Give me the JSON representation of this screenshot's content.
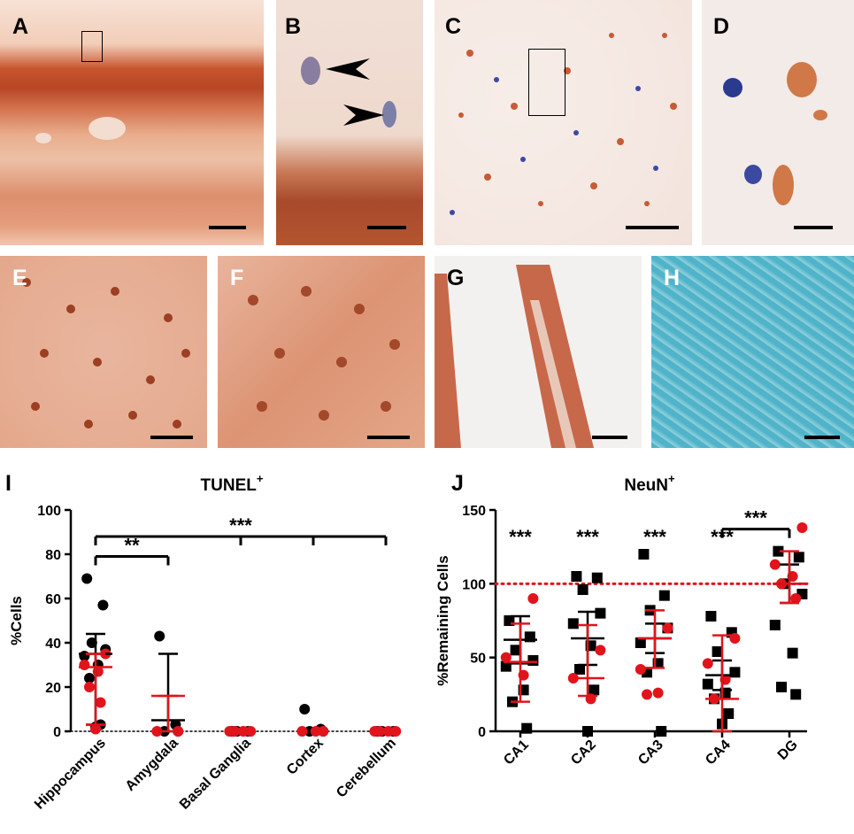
{
  "panels": {
    "A": {
      "label": "A"
    },
    "B": {
      "label": "B"
    },
    "C": {
      "label": "C"
    },
    "D": {
      "label": "D"
    },
    "E": {
      "label": "E"
    },
    "F": {
      "label": "F"
    },
    "G": {
      "label": "G"
    },
    "H": {
      "label": "H"
    }
  },
  "colors": {
    "stain_brown": "#b9542e",
    "stain_light": "#f1d6c7",
    "hematoxylin_blue": "#3a49a8",
    "alcian_blue": "#4fb3c9",
    "red_points": "#e2141b",
    "black_points": "#000000"
  },
  "chart_data": [
    {
      "panel_label": "I",
      "type": "scatter",
      "title": "TUNEL",
      "title_superscript": "+",
      "ylabel": "%Cells",
      "xlabel": "",
      "ylim": [
        0,
        100
      ],
      "yticks": [
        0,
        20,
        40,
        60,
        80,
        100
      ],
      "categories": [
        "Hippocampus",
        "Amygdala",
        "Basal Ganglia",
        "Cortex",
        "Cerebellum"
      ],
      "series": [
        {
          "color": "#000000",
          "points": [
            [
              0,
              69
            ],
            [
              0,
              57
            ],
            [
              0,
              40
            ],
            [
              0,
              37
            ],
            [
              0,
              34
            ],
            [
              0,
              30
            ],
            [
              0,
              24
            ],
            [
              0,
              3
            ],
            [
              0,
              2
            ],
            [
              1,
              43
            ],
            [
              1,
              3
            ],
            [
              1,
              0
            ],
            [
              1,
              0
            ],
            [
              2,
              0
            ],
            [
              2,
              0
            ],
            [
              2,
              0
            ],
            [
              3,
              10
            ],
            [
              3,
              1
            ],
            [
              3,
              0
            ],
            [
              3,
              0
            ],
            [
              4,
              0
            ],
            [
              4,
              0
            ],
            [
              4,
              0
            ]
          ]
        },
        {
          "color": "#e2141b",
          "points": [
            [
              0,
              35
            ],
            [
              0,
              30
            ],
            [
              0,
              27
            ],
            [
              0,
              20
            ],
            [
              0,
              13
            ],
            [
              0,
              1
            ],
            [
              1,
              0
            ],
            [
              1,
              0
            ],
            [
              2,
              0
            ],
            [
              2,
              0
            ],
            [
              2,
              0
            ],
            [
              2,
              0
            ],
            [
              3,
              0
            ],
            [
              3,
              0
            ],
            [
              3,
              0
            ],
            [
              4,
              0
            ],
            [
              4,
              0
            ],
            [
              4,
              0
            ],
            [
              4,
              0
            ]
          ]
        }
      ],
      "summary": [
        {
          "category": "Hippocampus",
          "black_mean": 35,
          "black_low": 3,
          "black_high": 44,
          "red_median": 29,
          "red_low": 3,
          "red_high": 35
        },
        {
          "category": "Amygdala",
          "black_mean": 5,
          "black_low": 0,
          "black_high": 35,
          "red_median": 16,
          "red_low": 0,
          "red_high": 16
        }
      ],
      "significance": [
        {
          "from": 0,
          "to": [
            1
          ],
          "y": 79,
          "label": "**"
        },
        {
          "from": 0,
          "to": [
            2,
            3,
            4
          ],
          "y": 88,
          "label": "***"
        }
      ],
      "reference_line": {
        "y": 0,
        "style": "dotted"
      }
    },
    {
      "panel_label": "J",
      "type": "scatter",
      "title": "NeuN",
      "title_superscript": "+",
      "ylabel": "%Remaining  Cells",
      "xlabel": "",
      "ylim": [
        0,
        150
      ],
      "yticks": [
        0,
        50,
        100,
        150
      ],
      "categories": [
        "CA1",
        "CA2",
        "CA3",
        "CA4",
        "DG"
      ],
      "series": [
        {
          "color": "#000000",
          "points": [
            [
              0,
              75
            ],
            [
              0,
              64
            ],
            [
              0,
              55
            ],
            [
              0,
              48
            ],
            [
              0,
              44
            ],
            [
              0,
              28
            ],
            [
              0,
              20
            ],
            [
              0,
              2
            ],
            [
              1,
              105
            ],
            [
              1,
              104
            ],
            [
              1,
              96
            ],
            [
              1,
              80
            ],
            [
              1,
              73
            ],
            [
              1,
              58
            ],
            [
              1,
              42
            ],
            [
              1,
              28
            ],
            [
              1,
              0
            ],
            [
              2,
              120
            ],
            [
              2,
              92
            ],
            [
              2,
              82
            ],
            [
              2,
              70
            ],
            [
              2,
              60
            ],
            [
              2,
              46
            ],
            [
              2,
              40
            ],
            [
              2,
              0
            ],
            [
              3,
              78
            ],
            [
              3,
              67
            ],
            [
              3,
              54
            ],
            [
              3,
              40
            ],
            [
              3,
              32
            ],
            [
              3,
              26
            ],
            [
              3,
              22
            ],
            [
              3,
              12
            ],
            [
              3,
              5
            ],
            [
              4,
              122
            ],
            [
              4,
              118
            ],
            [
              4,
              100
            ],
            [
              4,
              93
            ],
            [
              4,
              72
            ],
            [
              4,
              53
            ],
            [
              4,
              30
            ],
            [
              4,
              25
            ]
          ]
        },
        {
          "color": "#e2141b",
          "points": [
            [
              0,
              90
            ],
            [
              0,
              50
            ],
            [
              0,
              38
            ],
            [
              1,
              55
            ],
            [
              1,
              36
            ],
            [
              1,
              22
            ],
            [
              2,
              70
            ],
            [
              2,
              42
            ],
            [
              2,
              26
            ],
            [
              2,
              25
            ],
            [
              3,
              63
            ],
            [
              3,
              46
            ],
            [
              3,
              35
            ],
            [
              3,
              22
            ],
            [
              4,
              138
            ],
            [
              4,
              113
            ],
            [
              4,
              105
            ],
            [
              4,
              100
            ],
            [
              4,
              90
            ]
          ]
        }
      ],
      "summary": [
        {
          "category": "CA1",
          "black_mean": 62,
          "black_low": 46,
          "black_high": 78,
          "red_median": 47,
          "red_low": 20,
          "red_high": 73
        },
        {
          "category": "CA2",
          "black_mean": 63,
          "black_low": 45,
          "black_high": 81,
          "red_median": 36,
          "red_low": 24,
          "red_high": 72
        },
        {
          "category": "CA3",
          "black_mean": 63,
          "black_low": 53,
          "black_high": 73,
          "red_median": 63,
          "red_low": 43,
          "red_high": 82
        },
        {
          "category": "CA4",
          "black_mean": 38,
          "black_low": 28,
          "black_high": 48,
          "red_median": 22,
          "red_low": 0,
          "red_high": 65
        },
        {
          "category": "DG",
          "black_mean": 100,
          "black_low": 87,
          "black_high": 113,
          "red_median": 100,
          "red_low": 87,
          "red_high": 122
        }
      ],
      "significance_labels": [
        {
          "category": 0,
          "label": "***"
        },
        {
          "category": 1,
          "label": "***"
        },
        {
          "category": 2,
          "label": "***"
        },
        {
          "category": 3,
          "label": "***"
        }
      ],
      "bracket": {
        "from": 3,
        "to": 4,
        "y": 137,
        "label": "***"
      },
      "reference_line": {
        "y": 100,
        "style": "dotted",
        "color": "#e2141b"
      }
    }
  ]
}
